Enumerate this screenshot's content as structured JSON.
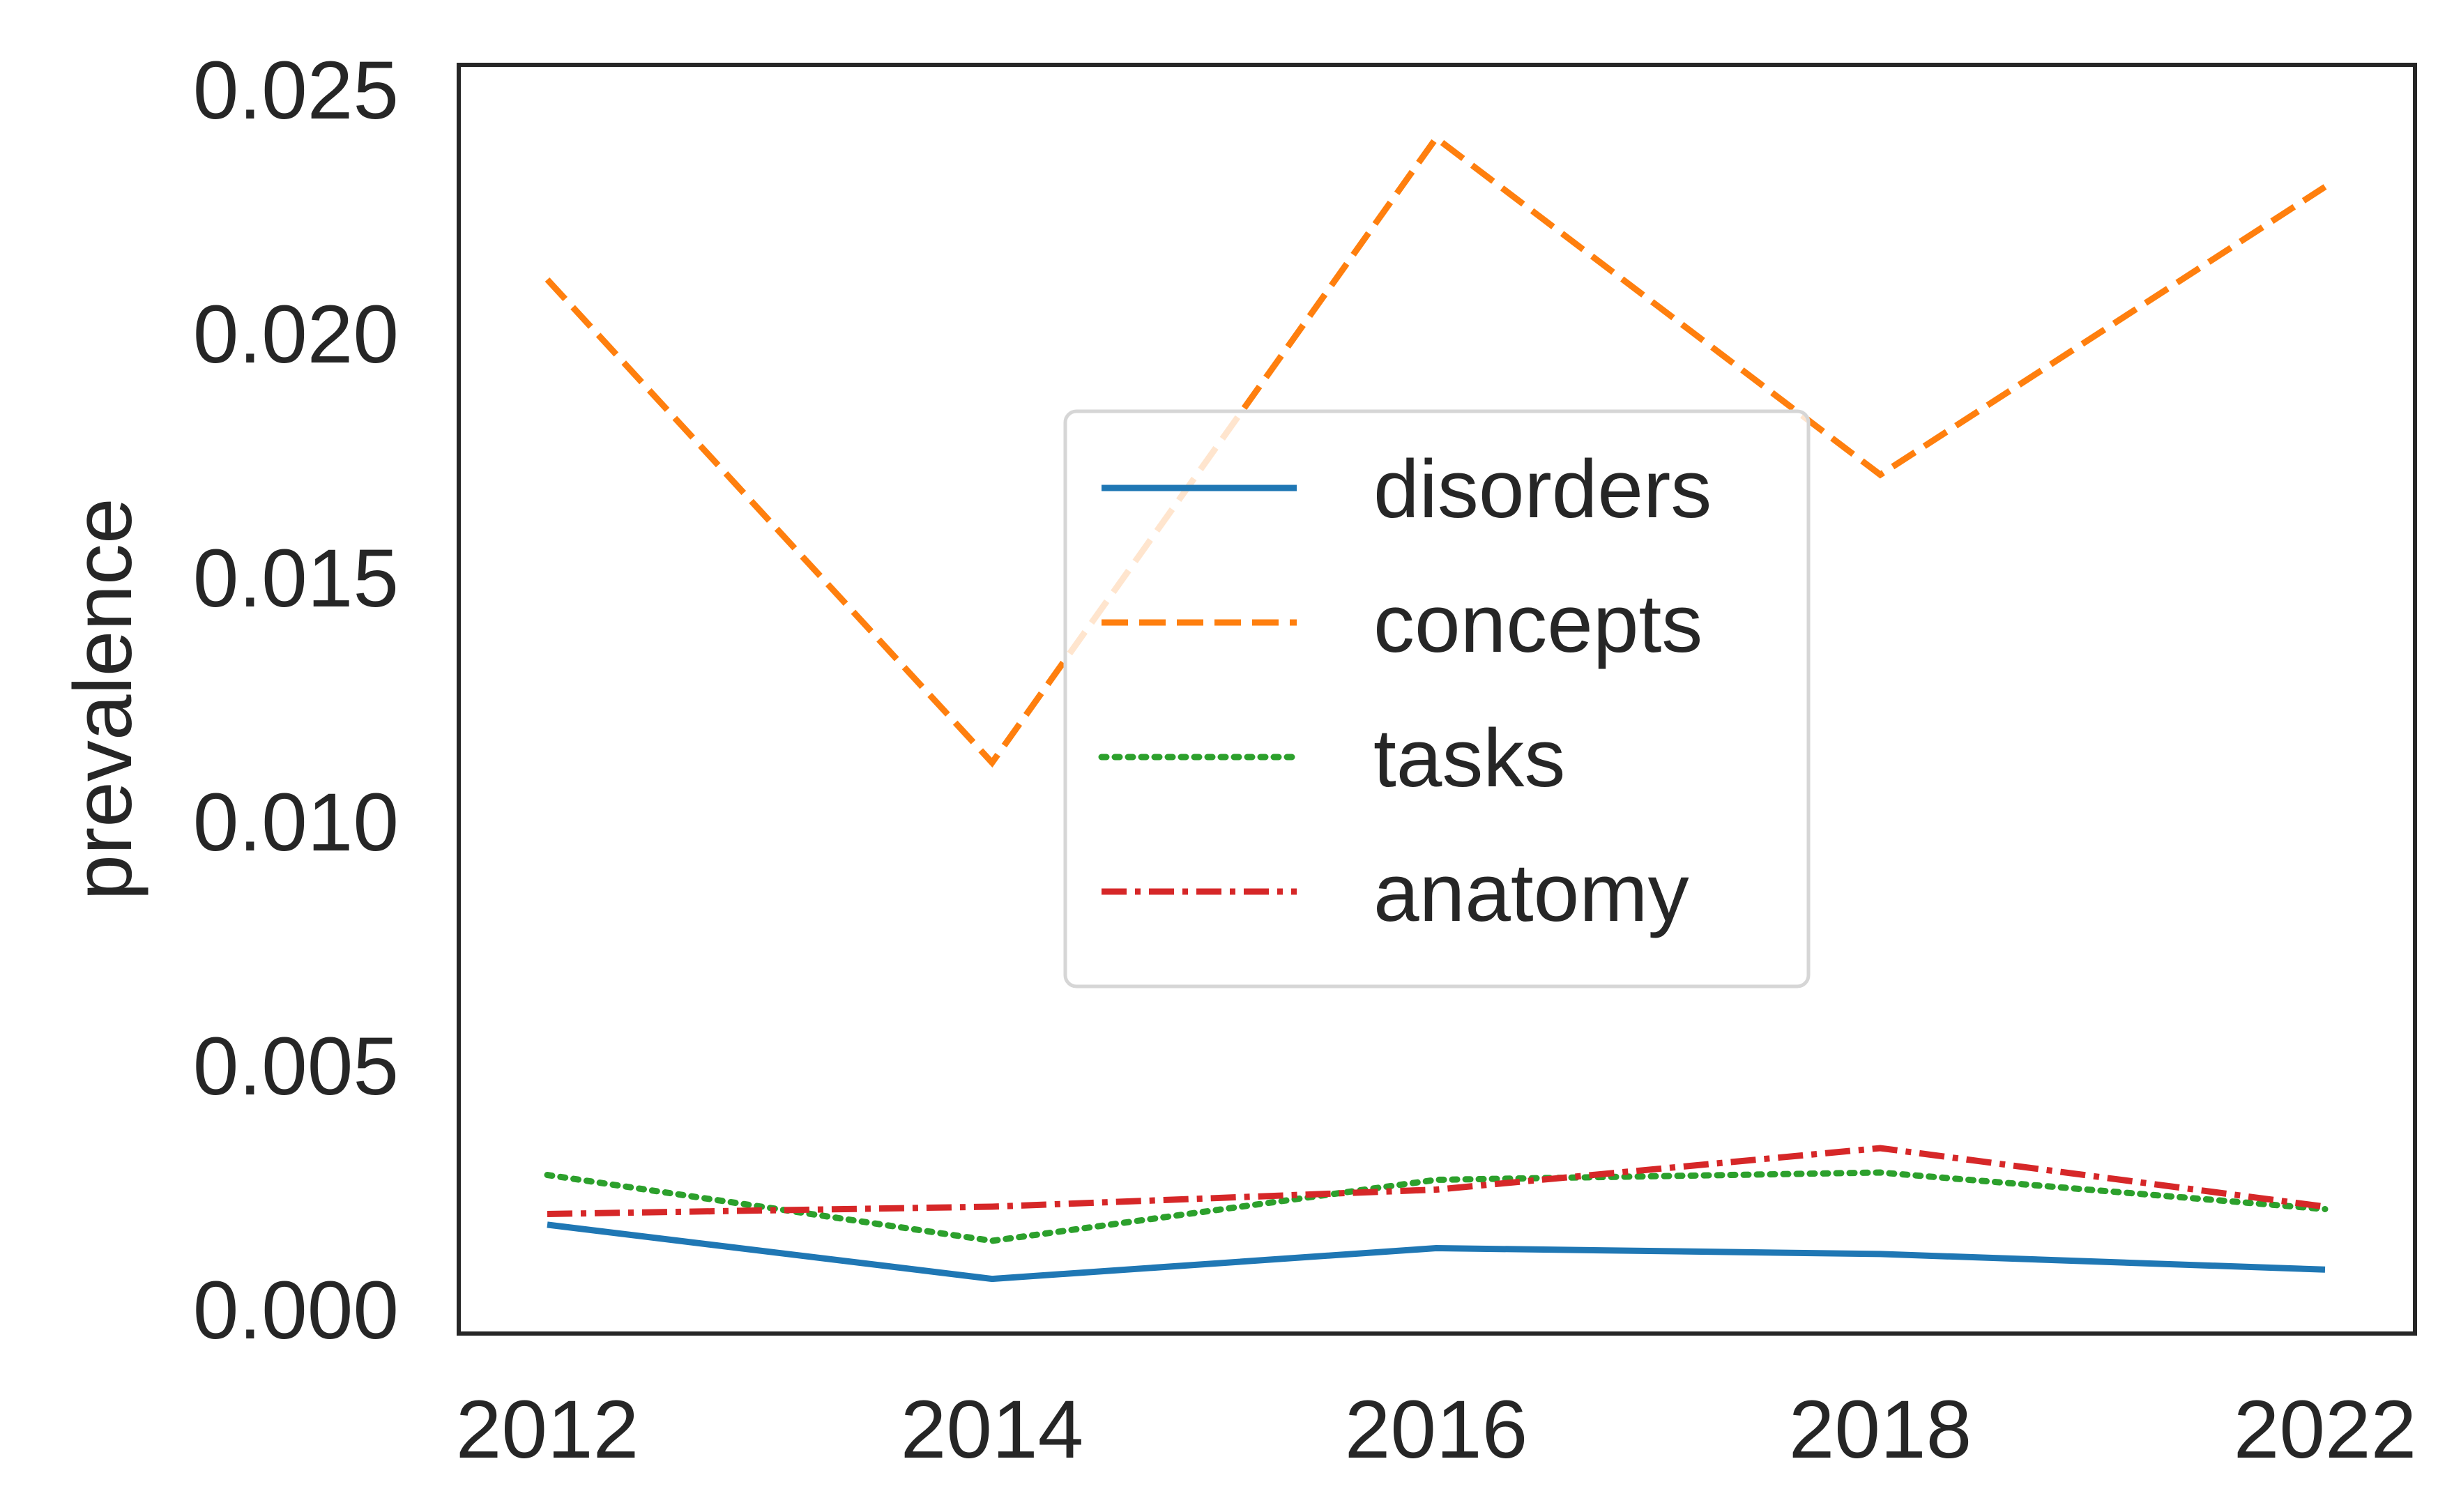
{
  "chart_data": {
    "type": "line",
    "title": "",
    "xlabel": "",
    "ylabel": "prevalence",
    "categories": [
      "2012",
      "2014",
      "2016",
      "2018",
      "2022"
    ],
    "yticks": [
      "0.000",
      "0.005",
      "0.010",
      "0.015",
      "0.020",
      "0.025"
    ],
    "ytick_values": [
      0,
      0.005,
      0.01,
      0.015,
      0.02,
      0.025
    ],
    "ylim": [
      -0.0005,
      0.0255
    ],
    "grid": false,
    "legend_position": "center",
    "series": [
      {
        "name": "disorders",
        "color": "#1f77b4",
        "dash": "solid",
        "values": [
          0.00173,
          0.00062,
          0.00125,
          0.00113,
          0.00081
        ]
      },
      {
        "name": "concepts",
        "color": "#ff7f0e",
        "dash": "dashed",
        "values": [
          0.0211,
          0.0112,
          0.024,
          0.0171,
          0.023
        ]
      },
      {
        "name": "tasks",
        "color": "#2ca02c",
        "dash": "dotted",
        "values": [
          0.00275,
          0.0014,
          0.00265,
          0.0028,
          0.00205
        ]
      },
      {
        "name": "anatomy",
        "color": "#d62728",
        "dash": "dashdot",
        "values": [
          0.00195,
          0.0021,
          0.00245,
          0.0033,
          0.0021
        ]
      }
    ]
  }
}
